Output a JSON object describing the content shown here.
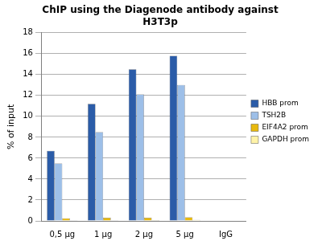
{
  "chart_data": {
    "type": "bar",
    "title": [
      "ChIP using the Diagenode antibody against",
      "H3T3p"
    ],
    "y_label": "% of input",
    "categories": [
      "0,5 µg",
      "1 µg",
      "2 µg",
      "5 µg",
      "IgG"
    ],
    "series": [
      {
        "name": "HBB prom",
        "color": "#2b5ca8",
        "values": [
          6.7,
          11.2,
          14.5,
          15.8,
          0
        ]
      },
      {
        "name": "TSH2B",
        "color": "#9dbfe8",
        "values": [
          5.5,
          8.5,
          12.1,
          13.0,
          0
        ]
      },
      {
        "name": "EIF4A2 prom",
        "color": "#e8b90e",
        "values": [
          0.25,
          0.3,
          0.3,
          0.35,
          0
        ]
      },
      {
        "name": "GAPDH prom",
        "color": "#fff3a8",
        "values": [
          0.05,
          0.05,
          0.08,
          0.1,
          0
        ]
      }
    ],
    "ylim": [
      0,
      18
    ],
    "yticks": [
      0,
      2,
      4,
      6,
      8,
      10,
      12,
      14,
      16,
      18
    ],
    "grid": true,
    "legend": "right"
  }
}
